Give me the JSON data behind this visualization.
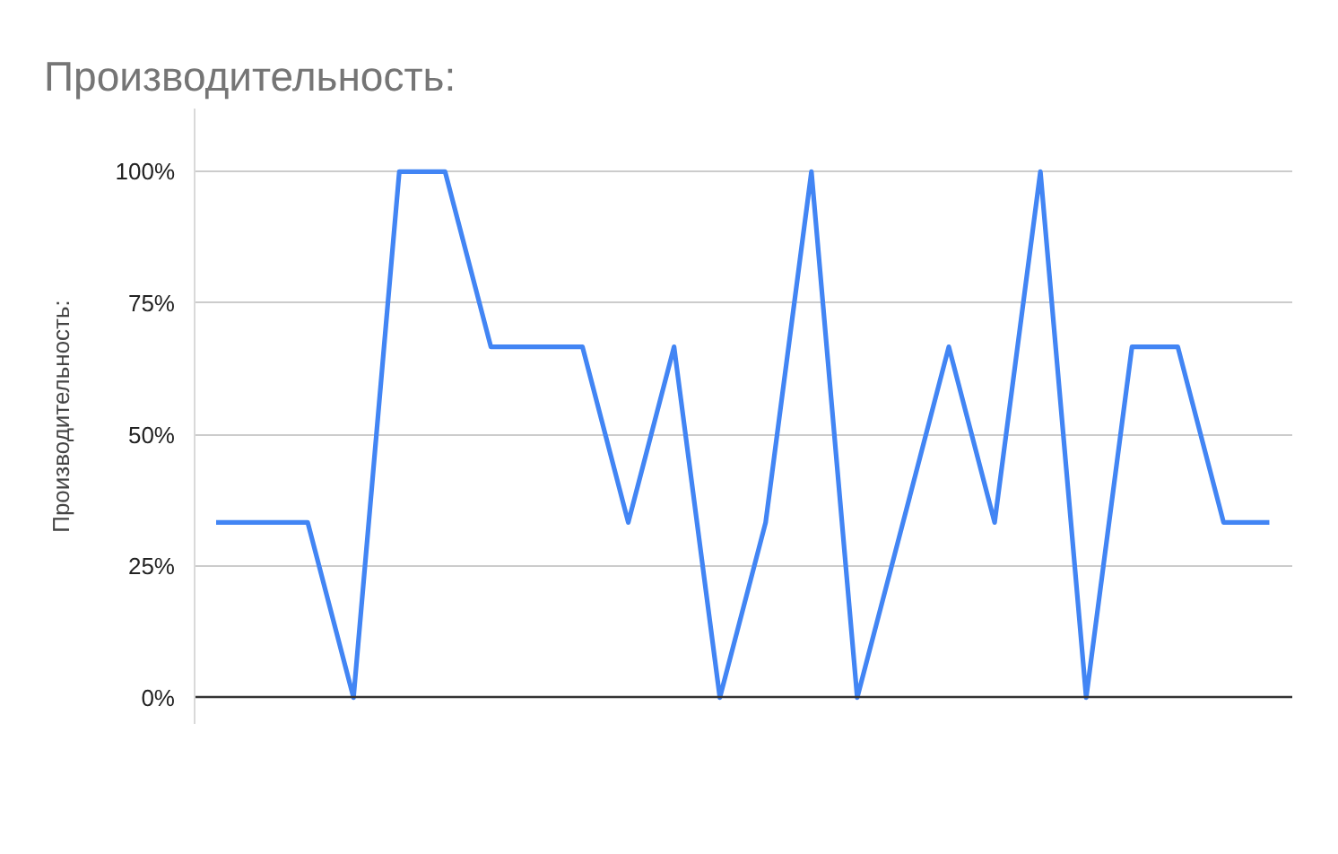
{
  "chart_data": {
    "type": "line",
    "title": "Производительность:",
    "ylabel": "Производительность:",
    "categories": [
      null,
      null,
      null,
      null,
      null,
      null,
      null,
      null,
      null,
      null,
      null,
      null,
      null,
      null,
      null,
      null,
      null,
      null,
      null,
      null,
      null,
      null,
      null,
      null
    ],
    "series": [
      {
        "color": "#4285f4",
        "values": [
          33.3,
          33.3,
          33.3,
          0,
          100,
          100,
          66.7,
          66.7,
          66.7,
          33.3,
          66.7,
          0,
          33.3,
          100,
          0,
          33.3,
          66.7,
          33.3,
          100,
          0,
          66.7,
          66.7,
          33.3,
          33.3
        ]
      }
    ],
    "ylim": [
      -5,
      112
    ],
    "yticks": [
      {
        "value": 0,
        "label": "0%"
      },
      {
        "value": 25,
        "label": "25%"
      },
      {
        "value": 50,
        "label": "50%"
      },
      {
        "value": 75,
        "label": "75%"
      },
      {
        "value": 100,
        "label": "100%"
      }
    ],
    "grid": "y",
    "tick_labels": "y"
  }
}
